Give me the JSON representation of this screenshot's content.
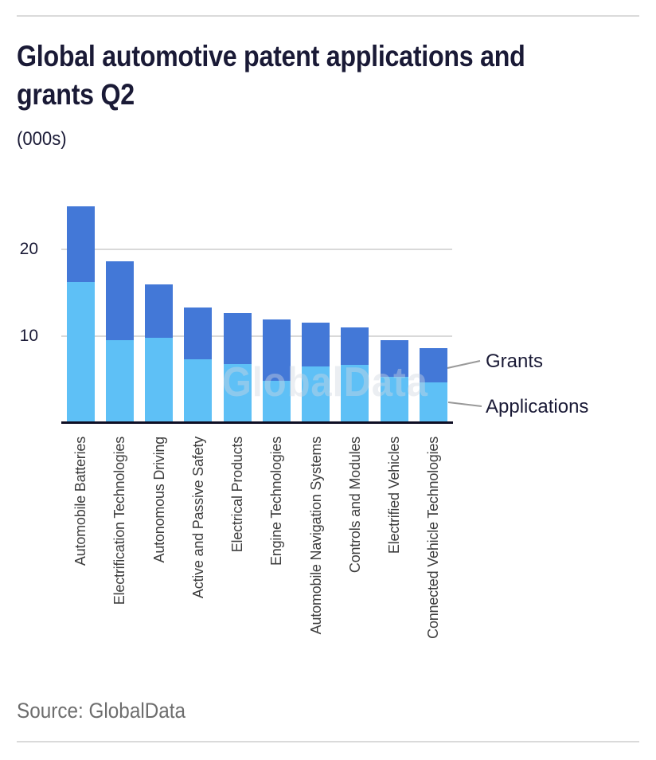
{
  "header": {
    "title_line1": "Global automotive patent applications and",
    "title_line2": "grants Q2",
    "unit": "(000s)"
  },
  "legend": {
    "grants": "Grants",
    "applications": "Applications"
  },
  "footer": {
    "source": "Source: GlobalData"
  },
  "watermark": "GlobalData",
  "colors": {
    "applications_blue": "#5ec0f6",
    "grants_blue": "#4378d7",
    "title_text": "#1a1a36",
    "x_label_text": "#3d3d3d",
    "source_text": "#6d6d6d",
    "gridline": "#d9d9d9",
    "axis_line": "#0e0e24",
    "connector_line": "#999999"
  },
  "chart_data": {
    "type": "bar",
    "stacked": true,
    "title": "Global automotive patent applications and grants Q2",
    "unit_label": "(000s)",
    "categories": [
      "Automobile Batteries",
      "Electrification Technologies",
      "Autonomous Driving",
      "Active and Passive Safety",
      "Electrical Products",
      "Engine Technologies",
      "Automobile Navigation Systems",
      "Controls and Modules",
      "Electrified Vehicles",
      "Connected Vehicle Technologies"
    ],
    "series": [
      {
        "name": "Applications",
        "color": "#5ec0f6",
        "values": [
          16.2,
          9.5,
          9.8,
          7.3,
          6.8,
          4.9,
          6.5,
          6.7,
          5.3,
          4.7
        ]
      },
      {
        "name": "Grants",
        "color": "#4378d7",
        "values": [
          8.8,
          9.1,
          6.2,
          6.0,
          5.9,
          7.0,
          5.1,
          4.3,
          4.2,
          3.9
        ]
      }
    ],
    "totals": [
      25.0,
      18.6,
      16.0,
      13.3,
      12.7,
      11.9,
      11.6,
      11.0,
      9.5,
      8.6
    ],
    "yticks": [
      10,
      20
    ],
    "ylim": [
      0,
      26.7
    ],
    "grid": "horizontal",
    "legend_position": "right-annotations",
    "source": "Source: GlobalData"
  }
}
